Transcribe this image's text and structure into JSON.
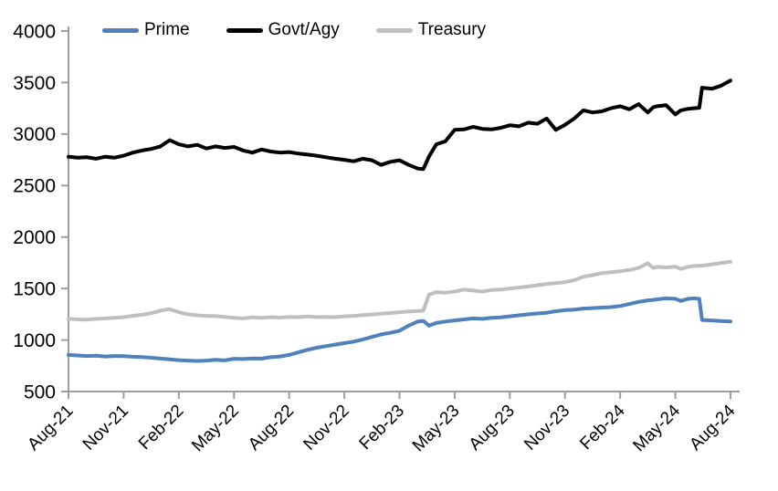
{
  "chart_data": {
    "type": "line",
    "title": "",
    "xlabel": "",
    "ylabel": "",
    "legend_position": "top",
    "grid": false,
    "axis_color": "#9d9d9d",
    "y_axis": {
      "min": 500,
      "max": 4000,
      "step": 500,
      "tick_labels": [
        "500",
        "1000",
        "1500",
        "2000",
        "2500",
        "3000",
        "3500",
        "4000"
      ]
    },
    "x_axis": {
      "unit": "months-since-Aug-21",
      "min": 0,
      "max": 36,
      "tick_positions": [
        0,
        3,
        6,
        9,
        12,
        15,
        18,
        21,
        24,
        27,
        30,
        33,
        36
      ],
      "tick_labels": [
        "Aug-21",
        "Nov-21",
        "Feb-22",
        "May-22",
        "Aug-22",
        "Nov-22",
        "Feb-23",
        "May-23",
        "Aug-23",
        "Nov-23",
        "Feb-24",
        "May-24",
        "Aug-24"
      ]
    },
    "x": [
      0,
      0.5,
      1,
      1.5,
      2,
      2.5,
      3,
      3.5,
      4,
      4.5,
      5,
      5.5,
      6,
      6.5,
      7,
      7.5,
      8,
      8.5,
      9,
      9.5,
      10,
      10.5,
      11,
      11.5,
      12,
      12.5,
      13,
      13.5,
      14,
      14.5,
      15,
      15.5,
      16,
      16.5,
      17,
      17.5,
      18,
      18.5,
      19,
      19.3,
      19.6,
      20,
      20.5,
      21,
      21.5,
      22,
      22.5,
      23,
      23.5,
      24,
      24.5,
      25,
      25.5,
      26,
      26.5,
      27,
      27.5,
      28,
      28.5,
      29,
      29.5,
      30,
      30.5,
      31,
      31.5,
      31.8,
      32,
      32.5,
      33,
      33.3,
      33.7,
      34,
      34.3,
      34.45,
      35,
      35.5,
      36
    ],
    "series": [
      {
        "name": "Prime",
        "color": "#4f81bd",
        "values": [
          855,
          850,
          845,
          848,
          840,
          845,
          843,
          838,
          835,
          828,
          820,
          812,
          805,
          800,
          797,
          800,
          808,
          802,
          818,
          815,
          822,
          820,
          833,
          840,
          855,
          880,
          905,
          925,
          940,
          955,
          970,
          985,
          1005,
          1030,
          1055,
          1070,
          1090,
          1140,
          1180,
          1185,
          1140,
          1165,
          1180,
          1190,
          1200,
          1210,
          1205,
          1215,
          1220,
          1230,
          1240,
          1250,
          1258,
          1265,
          1280,
          1290,
          1295,
          1305,
          1310,
          1315,
          1320,
          1330,
          1350,
          1370,
          1385,
          1390,
          1395,
          1405,
          1400,
          1380,
          1400,
          1405,
          1400,
          1195,
          1190,
          1185,
          1180
        ]
      },
      {
        "name": "Govt/Agy",
        "color": "#000000",
        "values": [
          2780,
          2770,
          2775,
          2760,
          2780,
          2770,
          2790,
          2820,
          2840,
          2855,
          2880,
          2940,
          2900,
          2880,
          2895,
          2860,
          2880,
          2865,
          2875,
          2840,
          2820,
          2850,
          2830,
          2820,
          2825,
          2810,
          2800,
          2790,
          2775,
          2760,
          2750,
          2735,
          2760,
          2745,
          2700,
          2730,
          2745,
          2700,
          2665,
          2660,
          2780,
          2900,
          2930,
          3040,
          3045,
          3070,
          3050,
          3045,
          3060,
          3085,
          3075,
          3110,
          3100,
          3150,
          3040,
          3090,
          3150,
          3230,
          3210,
          3220,
          3250,
          3270,
          3240,
          3290,
          3210,
          3260,
          3270,
          3280,
          3190,
          3230,
          3245,
          3250,
          3255,
          3450,
          3440,
          3470,
          3520
        ]
      },
      {
        "name": "Treasury",
        "color": "#bfbfbf",
        "values": [
          1205,
          1200,
          1198,
          1205,
          1210,
          1215,
          1222,
          1235,
          1245,
          1260,
          1285,
          1300,
          1270,
          1250,
          1240,
          1235,
          1232,
          1225,
          1215,
          1210,
          1220,
          1215,
          1222,
          1218,
          1225,
          1222,
          1228,
          1222,
          1225,
          1222,
          1230,
          1235,
          1242,
          1248,
          1255,
          1262,
          1270,
          1278,
          1282,
          1285,
          1440,
          1465,
          1460,
          1470,
          1490,
          1480,
          1470,
          1485,
          1490,
          1500,
          1510,
          1520,
          1532,
          1545,
          1552,
          1562,
          1580,
          1615,
          1630,
          1650,
          1658,
          1668,
          1680,
          1700,
          1745,
          1700,
          1710,
          1705,
          1712,
          1690,
          1710,
          1718,
          1722,
          1722,
          1735,
          1748,
          1760
        ]
      }
    ]
  }
}
